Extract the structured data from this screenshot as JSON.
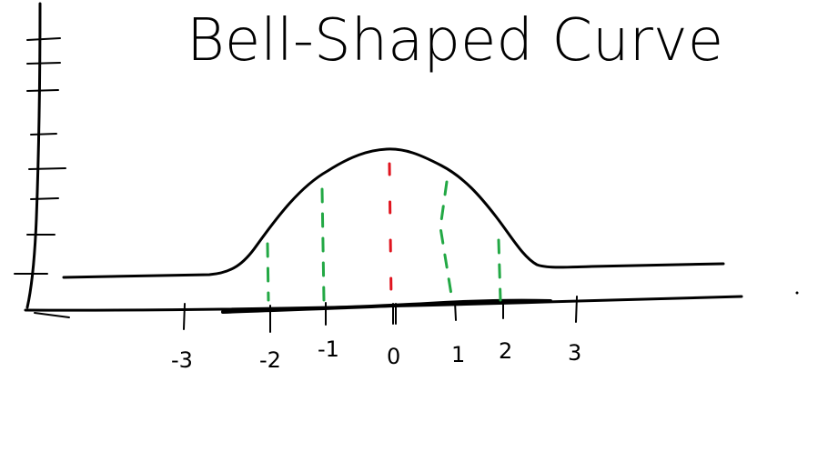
{
  "title": "Bell-Shaped Curve",
  "x_tick_labels": [
    "-3",
    "-2",
    "-1",
    "0",
    "1",
    "2",
    "3"
  ],
  "colors": {
    "ink": "#000000",
    "mean_line": "#e0141e",
    "deviation_lines": "#22a844",
    "background": "#ffffff"
  }
}
